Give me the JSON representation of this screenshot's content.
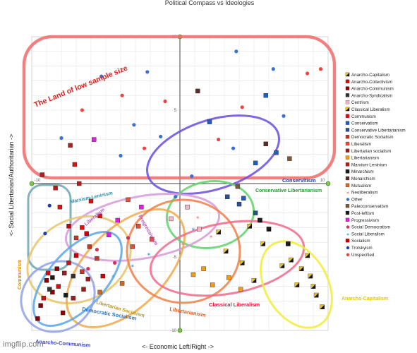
{
  "chart_data": {
    "type": "scatter",
    "title": "Political Compass vs Ideologies",
    "xlabel": "<- Economic Left/Right ->",
    "ylabel": "<- Social Libertarian/Authoritarian ->",
    "xlim": [
      -10,
      10
    ],
    "ylim": [
      -10,
      10
    ],
    "x_ticks": [
      "-10",
      "10"
    ],
    "y_ticks": [
      "10",
      "5",
      "-5",
      "-10"
    ],
    "grid": true,
    "legend_placement": "right",
    "series": [
      {
        "name": "Anarcho-Capitalism",
        "color": "#e8c020",
        "marker": "half-square",
        "points": [
          [
            7.5,
            -5.2
          ],
          [
            8.2,
            -5.8
          ],
          [
            8.8,
            -6.3
          ],
          [
            9.2,
            -7.6
          ],
          [
            7.9,
            -6.9
          ],
          [
            9.6,
            -8.4
          ],
          [
            8.6,
            -4.9
          ],
          [
            6.9,
            -5.6
          ],
          [
            9.0,
            -7.0
          ]
        ]
      },
      {
        "name": "Anarcho-Collectivism",
        "color": "#d01010",
        "marker": "square",
        "points": [
          [
            -8.9,
            -6.1
          ],
          [
            -8.2,
            -7.0
          ],
          [
            -7.5,
            -5.4
          ],
          [
            -9.2,
            -7.8
          ]
        ]
      },
      {
        "name": "Anarcho-Communism",
        "color": "#8b0000",
        "marker": "square",
        "points": [
          [
            -9.4,
            -8.3
          ],
          [
            -8.6,
            -7.4
          ],
          [
            -9.0,
            -6.6
          ],
          [
            -7.9,
            -8.8
          ],
          [
            -9.6,
            -9.2
          ],
          [
            -8.3,
            -5.8
          ]
        ]
      },
      {
        "name": "Anarcho-Syndicalism",
        "color": "#333333",
        "marker": "square",
        "points": [
          [
            -8.8,
            -7.2
          ],
          [
            -7.2,
            -6.3
          ]
        ]
      },
      {
        "name": "Centrism",
        "color": "#f4b6c6",
        "marker": "square",
        "points": [
          [
            -0.6,
            -2.4
          ],
          [
            0.5,
            -1.6
          ],
          [
            1.3,
            -3.1
          ]
        ]
      },
      {
        "name": "Classical Liberalism",
        "color": "#f1c40f",
        "marker": "half-square",
        "points": [
          [
            4.2,
            -5.4
          ],
          [
            3.1,
            -4.6
          ],
          [
            5.0,
            -6.6
          ],
          [
            2.6,
            -3.3
          ],
          [
            4.7,
            -2.9
          ],
          [
            5.6,
            -4.1
          ]
        ]
      },
      {
        "name": "Communism",
        "color": "#e01010",
        "marker": "square",
        "points": [
          [
            -7.1,
            1.3
          ],
          [
            -6.0,
            -1.2
          ],
          [
            -5.4,
            -2.2
          ],
          [
            -8.1,
            -1.6
          ],
          [
            -6.6,
            -3.0
          ]
        ]
      },
      {
        "name": "Conservatism",
        "color": "#1f5fbf",
        "marker": "square",
        "points": [
          [
            5.8,
            6.0
          ],
          [
            6.5,
            2.1
          ],
          [
            2.0,
            4.2
          ],
          [
            5.1,
            1.4
          ],
          [
            4.3,
            -1.0
          ]
        ]
      },
      {
        "name": "Conservative Libertarianism",
        "color": "#2a4f8a",
        "marker": "square",
        "points": [
          [
            3.2,
            -0.9
          ],
          [
            5.1,
            -2.0
          ],
          [
            4.0,
            -1.4
          ]
        ]
      },
      {
        "name": "Democratic Socialism",
        "color": "#c0392b",
        "marker": "square",
        "points": [
          [
            -6.1,
            -4.3
          ],
          [
            -5.6,
            -5.1
          ],
          [
            -7.0,
            -3.7
          ],
          [
            -6.6,
            -6.0
          ]
        ]
      },
      {
        "name": "Liberalism",
        "color": "#e74c3c",
        "marker": "square",
        "points": [
          [
            -3.5,
            -1.1
          ],
          [
            -2.8,
            -2.9
          ],
          [
            -3.2,
            -4.3
          ],
          [
            -1.9,
            -3.8
          ]
        ]
      },
      {
        "name": "Libertarian socialism",
        "color": "#9b1c1c",
        "marker": "square",
        "points": [
          [
            -7.8,
            -6.1
          ],
          [
            -6.5,
            -7.2
          ],
          [
            -7.2,
            -7.8
          ],
          [
            -6.2,
            -6.5
          ]
        ]
      },
      {
        "name": "Libertarianism",
        "color": "#f39c12",
        "marker": "square",
        "points": [
          [
            1.6,
            -5.8
          ],
          [
            3.3,
            -6.4
          ],
          [
            2.2,
            -6.9
          ],
          [
            4.1,
            -7.2
          ],
          [
            0.9,
            -6.2
          ]
        ]
      },
      {
        "name": "Marxism-Leninism",
        "color": "#b71c1c",
        "marker": "square",
        "points": [
          [
            -9.3,
            0.6
          ],
          [
            -8.4,
            -0.3
          ],
          [
            -7.4,
            2.6
          ],
          [
            -6.8,
            0.0
          ]
        ]
      },
      {
        "name": "Minarchism",
        "color": "#1c1c1c",
        "marker": "half-square",
        "points": [
          [
            6.0,
            -3.1
          ],
          [
            7.3,
            -4.1
          ],
          [
            5.4,
            -2.5
          ]
        ]
      },
      {
        "name": "Monarchism",
        "color": "#5b2c2c",
        "marker": "square",
        "points": [
          [
            1.2,
            6.3
          ],
          [
            5.8,
            2.7
          ]
        ]
      },
      {
        "name": "Mutualism",
        "color": "#d2691e",
        "marker": "square",
        "points": [
          [
            -5.4,
            -7.4
          ],
          [
            -3.9,
            -6.8
          ]
        ]
      },
      {
        "name": "Neoliberalism",
        "color": "#ef8a8a",
        "marker": "star",
        "points": [
          [
            1.2,
            -2.3
          ],
          [
            2.1,
            -3.6
          ],
          [
            0.2,
            -4.1
          ]
        ]
      },
      {
        "name": "Other",
        "color": "#3b6fd1",
        "marker": "circle",
        "points": [
          [
            -2.2,
            7.6
          ],
          [
            3.8,
            9.0
          ],
          [
            -8.0,
            3.1
          ],
          [
            -4.0,
            1.9
          ],
          [
            -3.1,
            4.0
          ],
          [
            6.3,
            7.8
          ],
          [
            7.0,
            4.6
          ],
          [
            -5.3,
            7.3
          ],
          [
            0.8,
            0.5
          ],
          [
            -0.3,
            -0.9
          ],
          [
            3.6,
            2.4
          ],
          [
            -1.3,
            3.2
          ]
        ]
      },
      {
        "name": "Paleoconservatism",
        "color": "#7a5a3a",
        "marker": "square",
        "points": [
          [
            7.4,
            1.7
          ],
          [
            3.9,
            -0.2
          ]
        ]
      },
      {
        "name": "Post-leftism",
        "color": "#1a1a1a",
        "marker": "square",
        "points": [
          [
            -7.7,
            -7.6
          ],
          [
            -8.6,
            -6.4
          ]
        ]
      },
      {
        "name": "Progressivism",
        "color": "#e01ee0",
        "marker": "square",
        "points": [
          [
            -5.8,
            3.0
          ],
          [
            -4.2,
            -2.5
          ],
          [
            -2.6,
            -1.6
          ],
          [
            -4.8,
            -3.5
          ]
        ]
      },
      {
        "name": "Social Democratism",
        "color": "#d0305a",
        "marker": "circle",
        "points": [
          [
            -5.6,
            -4.5
          ],
          [
            -4.4,
            -5.4
          ],
          [
            -3.5,
            -3.7
          ],
          [
            -6.2,
            -5.8
          ]
        ]
      },
      {
        "name": "Social Liberalism",
        "color": "#4aa3df",
        "marker": "star",
        "points": [
          [
            -4.5,
            -6.3
          ],
          [
            -3.2,
            -5.6
          ],
          [
            -2.1,
            -4.8
          ],
          [
            0.9,
            -3.1
          ]
        ]
      },
      {
        "name": "Socialism",
        "color": "#cc0000",
        "marker": "square",
        "points": [
          [
            -7.0,
            -4.9
          ],
          [
            -6.3,
            -3.4
          ],
          [
            -5.2,
            -6.3
          ],
          [
            -7.5,
            -2.9
          ]
        ]
      },
      {
        "name": "Trotskyism",
        "color": "#1e40af",
        "marker": "circle",
        "points": [
          [
            -8.8,
            -1.5
          ],
          [
            -9.1,
            -3.4
          ]
        ]
      },
      {
        "name": "Unspecified",
        "color": "#ef4444",
        "marker": "circle",
        "points": [
          [
            -2.4,
            2.4
          ],
          [
            -6.6,
            5.0
          ],
          [
            4.2,
            5.2
          ],
          [
            8.6,
            7.5
          ],
          [
            9.5,
            7.8
          ],
          [
            -3.9,
            6.0
          ],
          [
            2.6,
            3.0
          ],
          [
            -1.0,
            5.6
          ]
        ]
      }
    ],
    "annotations": [
      {
        "text": "The Land of low sample size",
        "color": "#d92020"
      },
      {
        "text": "Conservitism",
        "color": "#1a3ea8"
      },
      {
        "text": "Conservative Libertarianism",
        "color": "#1a9e2a"
      },
      {
        "text": "Marxism-Leninism",
        "color": "#3b8a9c"
      },
      {
        "text": "Liberalism",
        "color": "#b35fc0"
      },
      {
        "text": "Communism",
        "color": "#e08a00"
      },
      {
        "text": "Libertarian Socialism",
        "color": "#b8961a"
      },
      {
        "text": "Democratic Socialism",
        "color": "#1f6fd1"
      },
      {
        "text": "Anarcho-Communism",
        "color": "#3c44c8"
      },
      {
        "text": "Libertarianism",
        "color": "#e05a10"
      },
      {
        "text": "Classical Liberalism",
        "color": "#e0103c"
      },
      {
        "text": "Anarcho-Capitalism",
        "color": "#e0c800"
      },
      {
        "text": "Progressivism",
        "color": "#c04fc0"
      }
    ]
  },
  "watermark": "imgflip.com"
}
